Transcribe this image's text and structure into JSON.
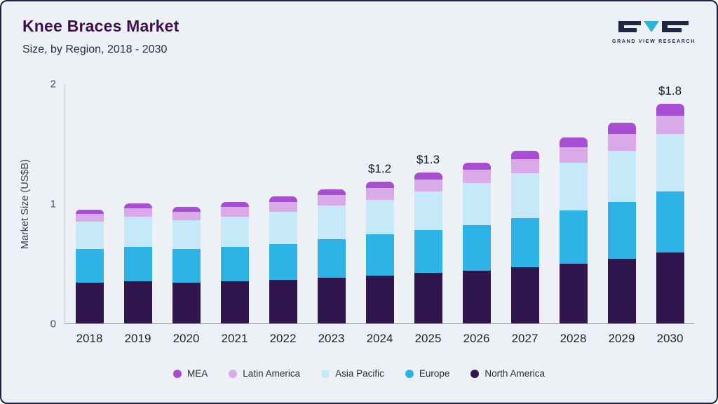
{
  "header": {
    "title": "Knee Braces Market",
    "subtitle": "Size, by Region, 2018 - 2030",
    "logo_text": "GRAND VIEW RESEARCH"
  },
  "colors": {
    "background": "#edf0f5",
    "title": "#3e1050",
    "logo_triangle": "#2fb4d9",
    "logo_dark": "#1c2940"
  },
  "chart_data": {
    "type": "bar",
    "stacked": true,
    "title": "Knee Braces Market Size, by Region, 2018 - 2030",
    "xlabel": "",
    "ylabel": "Market Size (US$B)",
    "ylim": [
      0,
      2
    ],
    "yticks": [
      0,
      1,
      2
    ],
    "grid": false,
    "legend_position": "bottom",
    "categories": [
      "2018",
      "2019",
      "2020",
      "2021",
      "2022",
      "2023",
      "2024",
      "2025",
      "2026",
      "2027",
      "2028",
      "2029",
      "2030"
    ],
    "series": [
      {
        "name": "North America",
        "color": "#2f164d",
        "values": [
          0.34,
          0.35,
          0.34,
          0.35,
          0.36,
          0.38,
          0.4,
          0.42,
          0.44,
          0.47,
          0.5,
          0.54,
          0.59
        ]
      },
      {
        "name": "Europe",
        "color": "#2db3e6",
        "values": [
          0.28,
          0.29,
          0.28,
          0.29,
          0.3,
          0.32,
          0.34,
          0.36,
          0.38,
          0.41,
          0.44,
          0.47,
          0.51
        ]
      },
      {
        "name": "Asia Pacific",
        "color": "#c5e9f9",
        "values": [
          0.23,
          0.25,
          0.24,
          0.25,
          0.27,
          0.28,
          0.29,
          0.32,
          0.35,
          0.37,
          0.4,
          0.43,
          0.48
        ]
      },
      {
        "name": "Latin America",
        "color": "#d9a9e8",
        "values": [
          0.06,
          0.07,
          0.07,
          0.08,
          0.08,
          0.09,
          0.1,
          0.1,
          0.11,
          0.12,
          0.13,
          0.14,
          0.15
        ]
      },
      {
        "name": "MEA",
        "color": "#a84ed2",
        "values": [
          0.04,
          0.04,
          0.04,
          0.04,
          0.05,
          0.05,
          0.05,
          0.06,
          0.06,
          0.07,
          0.08,
          0.09,
          0.1
        ]
      }
    ],
    "annotations": [
      {
        "x": "2024",
        "label": "$1.2"
      },
      {
        "x": "2025",
        "label": "$1.3"
      },
      {
        "x": "2030",
        "label": "$1.8"
      }
    ]
  },
  "legend": {
    "items": [
      {
        "label": "MEA",
        "color": "#a84ed2"
      },
      {
        "label": "Latin America",
        "color": "#d9a9e8"
      },
      {
        "label": "Asia Pacific",
        "color": "#c5e9f9"
      },
      {
        "label": "Europe",
        "color": "#2db3e6"
      },
      {
        "label": "North America",
        "color": "#2f164d"
      }
    ]
  }
}
